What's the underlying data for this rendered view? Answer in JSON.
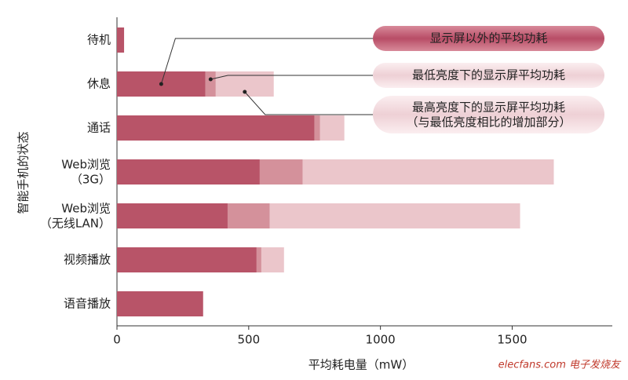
{
  "chart_data": {
    "type": "stacked-bar-horizontal",
    "x_label": "平均耗电量（mW）",
    "y_label": "智能手机的状态",
    "categories": [
      "待机",
      "休息",
      "通话",
      "Web浏览\n（3G）",
      "Web浏览\n（无线LAN）",
      "视频播放",
      "语音播放"
    ],
    "series": [
      {
        "name": "显示屏以外的平均功耗",
        "color": "#b85468",
        "values": [
          27,
          336,
          750,
          542,
          420,
          530,
          327
        ]
      },
      {
        "name": "最低亮度下的显示屏平均功耗",
        "color": "#d4919b",
        "values": [
          0,
          39,
          21,
          163,
          160,
          18,
          0
        ]
      },
      {
        "name": "最高亮度下的显示屏平均功耗\n（与最低亮度相比的增加部分）",
        "color": "#ebc6cb",
        "values": [
          0,
          220,
          92,
          953,
          950,
          86,
          0
        ]
      }
    ],
    "xlim": [
      0,
      1880
    ],
    "xticks": [
      0,
      500,
      1000,
      1500
    ],
    "grid": false,
    "watermark": "elecfans.com 电子发烧友"
  }
}
